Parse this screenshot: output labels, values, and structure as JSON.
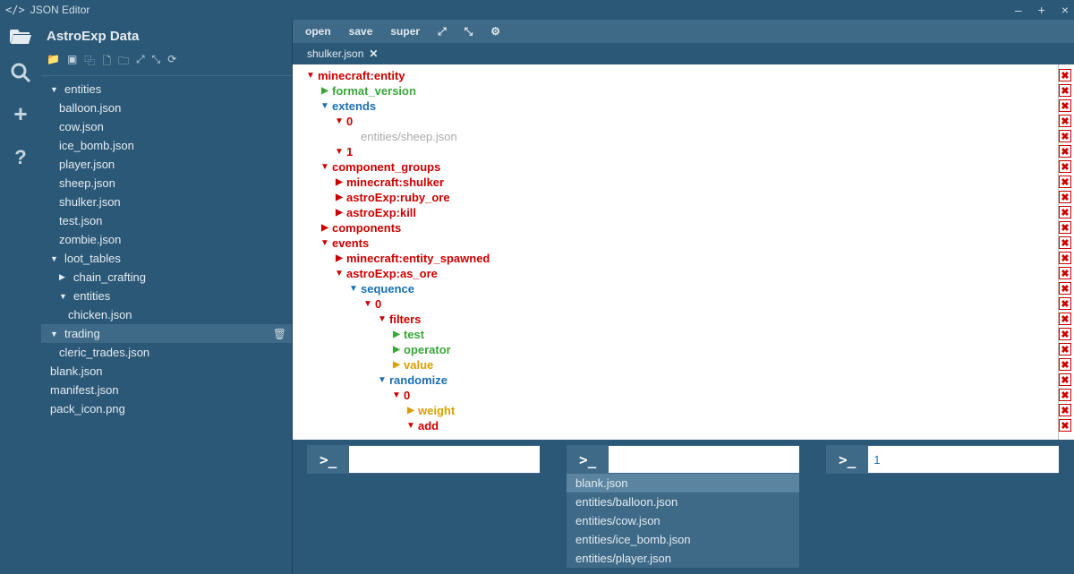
{
  "title": "JSON Editor",
  "project_name": "AstroExp Data",
  "menu": {
    "open": "open",
    "save": "save",
    "super": "super"
  },
  "active_tab": "shulker.json",
  "sidebar": {
    "folders": [
      {
        "name": "entities",
        "open": true,
        "items": [
          "balloon.json",
          "cow.json",
          "ice_bomb.json",
          "player.json",
          "sheep.json",
          "shulker.json",
          "test.json",
          "zombie.json"
        ]
      },
      {
        "name": "loot_tables",
        "open": true,
        "items": [],
        "subfolders": [
          {
            "name": "chain_crafting",
            "open": false
          },
          {
            "name": "entities",
            "open": true,
            "items": [
              "chicken.json"
            ]
          }
        ]
      },
      {
        "name": "trading",
        "open": true,
        "selected": true,
        "items": [
          "cleric_trades.json"
        ]
      }
    ],
    "root_files": [
      "blank.json",
      "manifest.json",
      "pack_icon.png"
    ]
  },
  "json_rows": [
    {
      "indent": 0,
      "arrow": "down",
      "color": "red",
      "text": "minecraft:entity",
      "del": true
    },
    {
      "indent": 1,
      "arrow": "right",
      "color": "green",
      "text": "format_version",
      "del": true
    },
    {
      "indent": 1,
      "arrow": "down",
      "color": "blue",
      "text": "extends",
      "del": true
    },
    {
      "indent": 2,
      "arrow": "down",
      "color": "red",
      "text": "0",
      "del": true
    },
    {
      "indent": 3,
      "arrow": "",
      "color": "gray",
      "text": "entities/sheep.json",
      "del": true
    },
    {
      "indent": 2,
      "arrow": "down",
      "color": "red",
      "text": "1",
      "del": true
    },
    {
      "indent": 1,
      "arrow": "down",
      "color": "red",
      "text": "component_groups",
      "del": true
    },
    {
      "indent": 2,
      "arrow": "right",
      "color": "red",
      "text": "minecraft:shulker",
      "del": true
    },
    {
      "indent": 2,
      "arrow": "right",
      "color": "red",
      "text": "astroExp:ruby_ore",
      "del": true
    },
    {
      "indent": 2,
      "arrow": "right",
      "color": "red",
      "text": "astroExp:kill",
      "del": true
    },
    {
      "indent": 1,
      "arrow": "right",
      "color": "red",
      "text": "components",
      "del": true
    },
    {
      "indent": 1,
      "arrow": "down",
      "color": "red",
      "text": "events",
      "del": true
    },
    {
      "indent": 2,
      "arrow": "right",
      "color": "red",
      "text": "minecraft:entity_spawned",
      "del": true
    },
    {
      "indent": 2,
      "arrow": "down",
      "color": "red",
      "text": "astroExp:as_ore",
      "del": true
    },
    {
      "indent": 3,
      "arrow": "down",
      "color": "blue",
      "text": "sequence",
      "del": true
    },
    {
      "indent": 4,
      "arrow": "down",
      "color": "red",
      "text": "0",
      "del": true
    },
    {
      "indent": 5,
      "arrow": "down",
      "color": "red",
      "text": "filters",
      "del": true
    },
    {
      "indent": 6,
      "arrow": "right",
      "color": "green",
      "text": "test",
      "del": true
    },
    {
      "indent": 6,
      "arrow": "right",
      "color": "green",
      "text": "operator",
      "del": true
    },
    {
      "indent": 6,
      "arrow": "right",
      "color": "yellow",
      "text": "value",
      "del": true
    },
    {
      "indent": 5,
      "arrow": "down",
      "color": "blue",
      "text": "randomize",
      "del": true
    },
    {
      "indent": 6,
      "arrow": "down",
      "color": "red",
      "text": "0",
      "del": true
    },
    {
      "indent": 7,
      "arrow": "right",
      "color": "yellow",
      "text": "weight",
      "del": true
    },
    {
      "indent": 7,
      "arrow": "down",
      "color": "red",
      "text": "add",
      "del": true
    }
  ],
  "consoles": {
    "c1": {
      "value": ""
    },
    "c2": {
      "value": "",
      "suggestions": [
        {
          "text": "blank.json",
          "hl": true
        },
        {
          "text": "entities/balloon.json"
        },
        {
          "text": "entities/cow.json"
        },
        {
          "text": "entities/ice_bomb.json"
        },
        {
          "text": "entities/player.json"
        }
      ]
    },
    "c3": {
      "value": "1"
    }
  },
  "colors": {
    "bg": "#2c5877",
    "panel": "#3e6a88",
    "red": "#cc0000",
    "blue": "#1a6fb3",
    "green": "#3aa63a",
    "yellow": "#d9a000",
    "gray": "#aaaaaa",
    "white": "#ffffff"
  }
}
